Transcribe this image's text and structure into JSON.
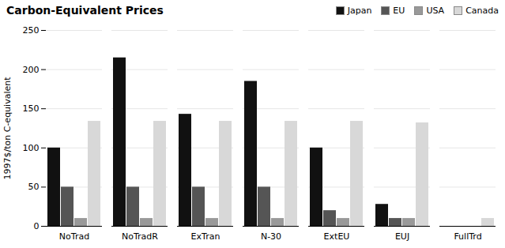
{
  "chart_data": {
    "type": "bar",
    "title": "Carbon-Equivalent Prices",
    "ylabel": "1997$/ton C-equivalent",
    "categories": [
      "NoTrad",
      "NoTradR",
      "ExTran",
      "N-30",
      "ExtEU",
      "EUJ",
      "FullTrd"
    ],
    "series": [
      {
        "name": "Japan",
        "color": "#111111",
        "values": [
          100,
          215,
          143,
          185,
          100,
          28,
          0
        ]
      },
      {
        "name": "EU",
        "color": "#555555",
        "values": [
          50,
          50,
          50,
          50,
          20,
          10,
          0
        ]
      },
      {
        "name": "USA",
        "color": "#999999",
        "values": [
          10,
          10,
          10,
          10,
          10,
          10,
          0
        ]
      },
      {
        "name": "Canada",
        "color": "#d8d8d8",
        "values": [
          134,
          134,
          134,
          134,
          134,
          132,
          10
        ]
      }
    ],
    "ylim": [
      0,
      250
    ],
    "yticks": [
      0,
      50,
      100,
      150,
      200,
      250
    ],
    "grid": true,
    "legend": "upper right"
  }
}
